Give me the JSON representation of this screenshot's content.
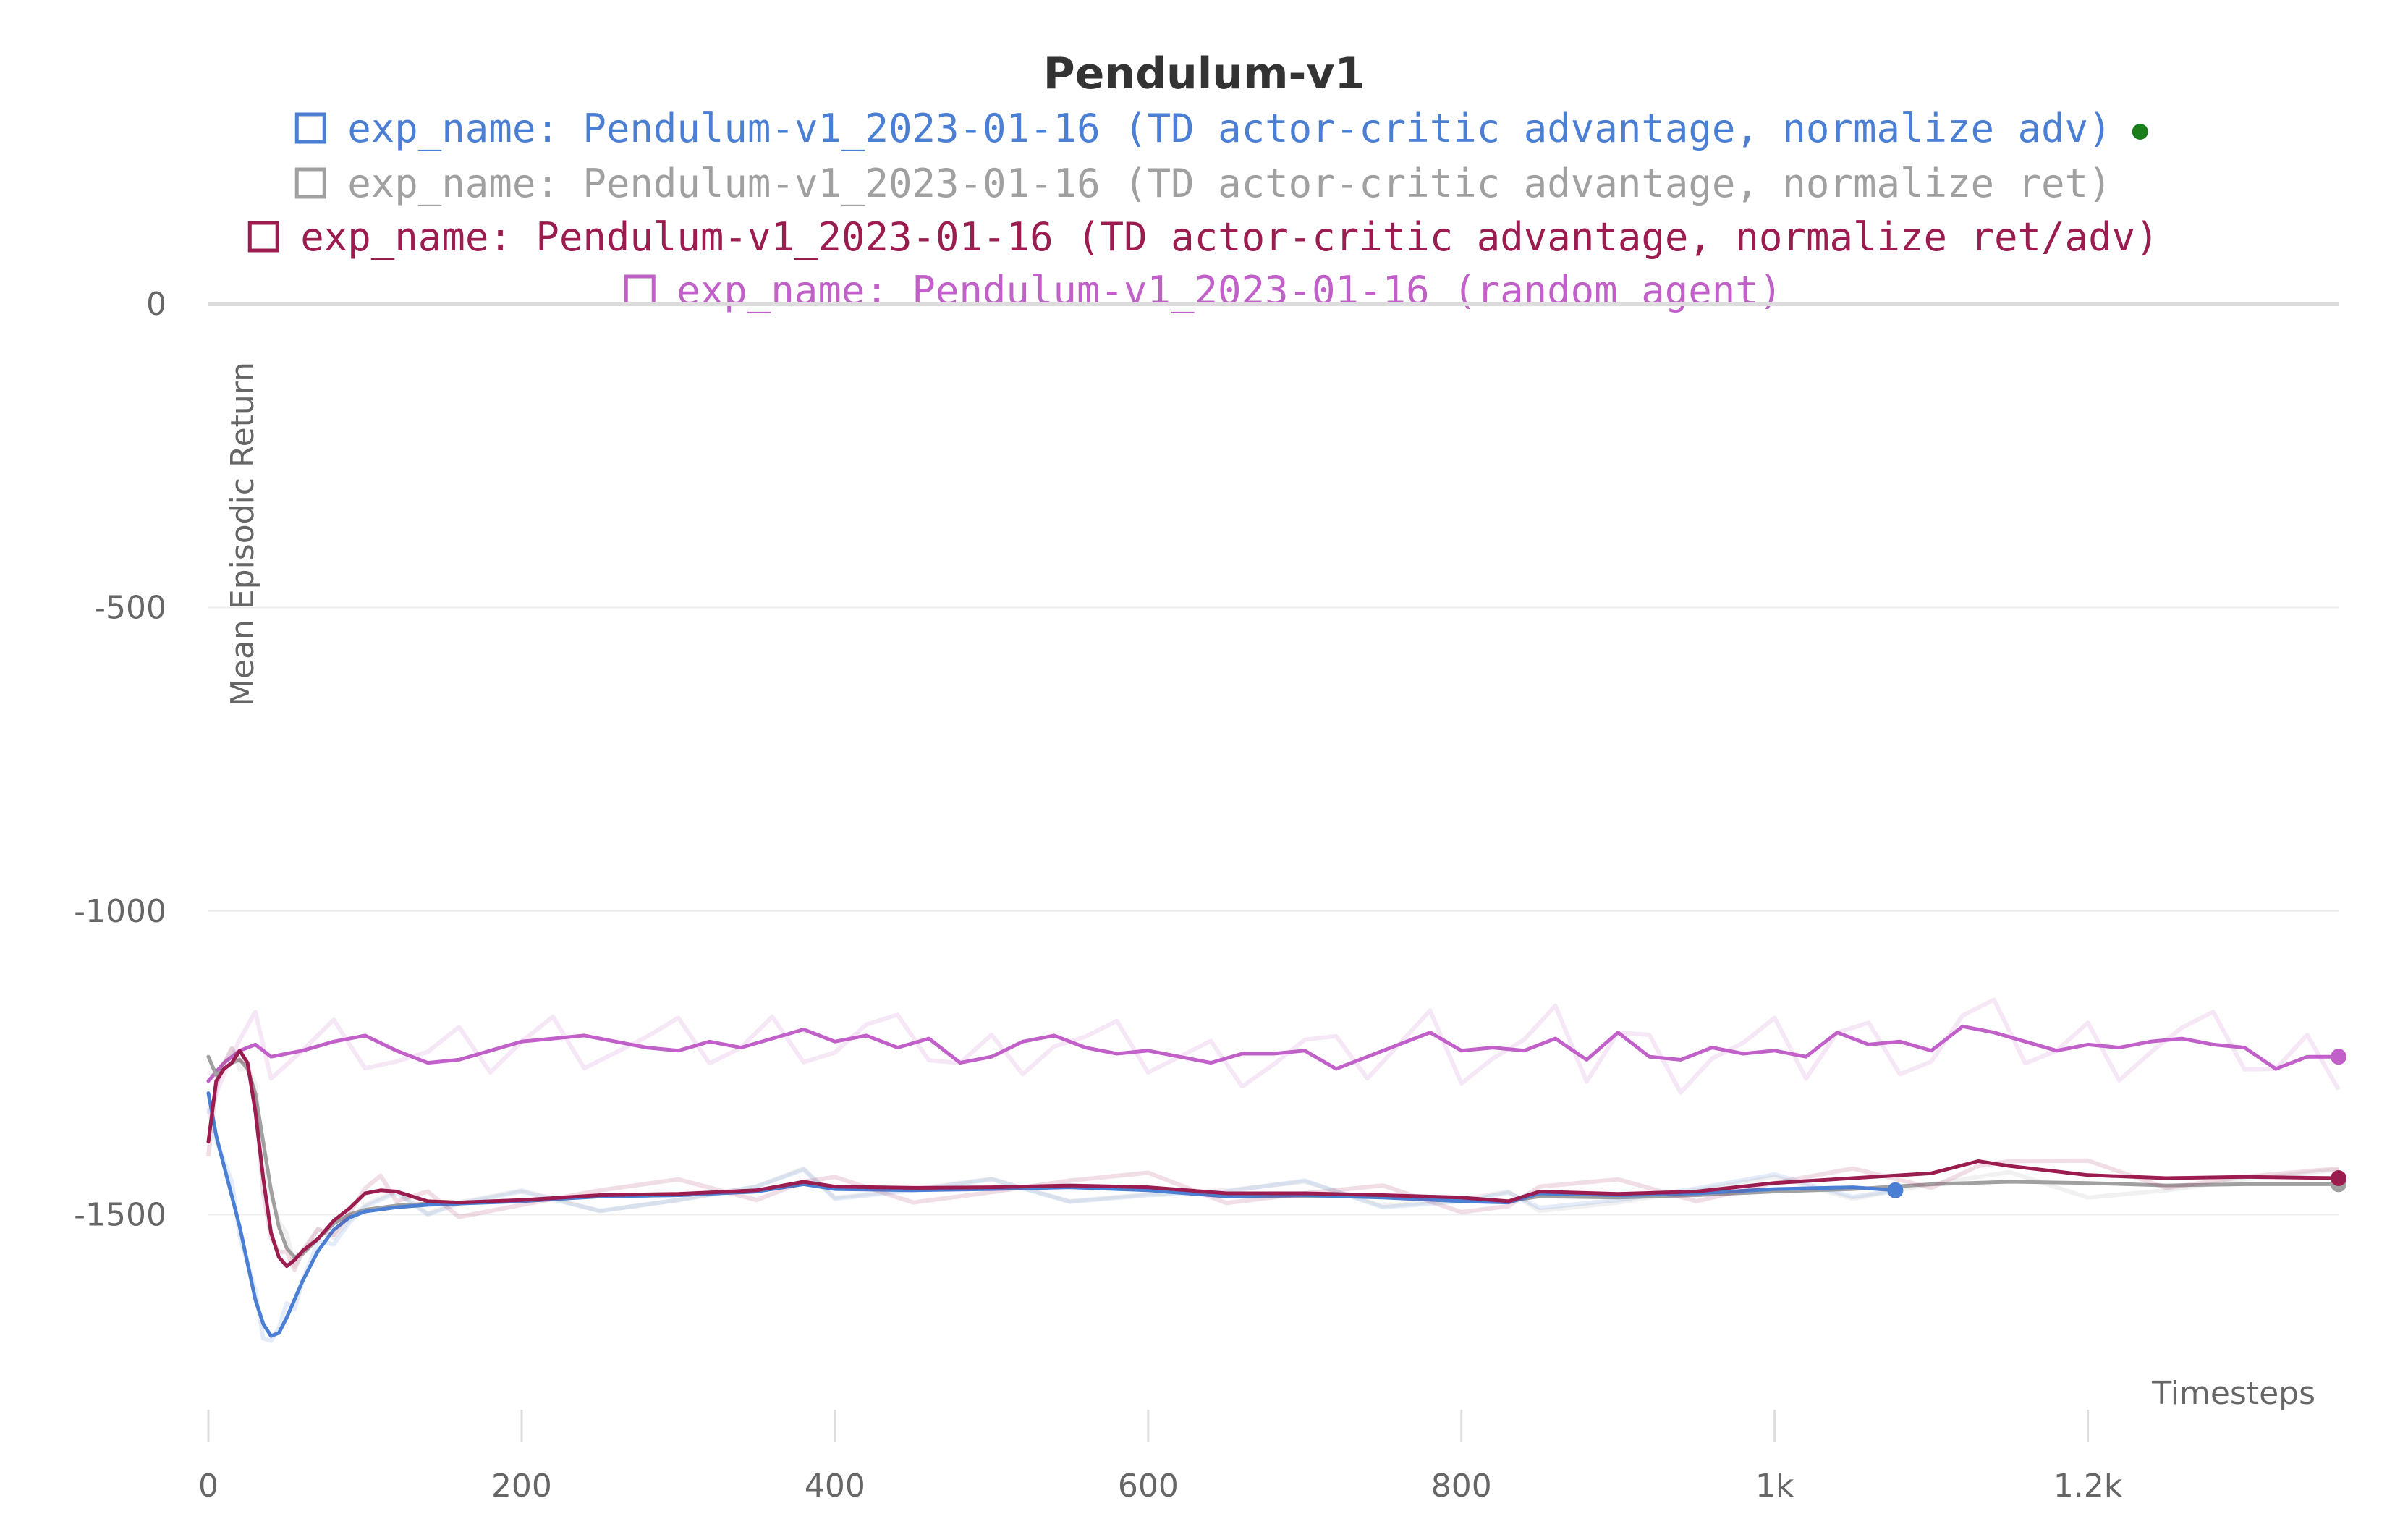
{
  "chart_data": {
    "type": "line",
    "title": "Pendulum-v1",
    "xlabel": "Timesteps",
    "ylabel": "Mean Episodic Return",
    "xlim": [
      0,
      1360
    ],
    "ylim": [
      -1800,
      0
    ],
    "x_ticks": [
      0,
      200,
      400,
      600,
      800,
      1000,
      1200
    ],
    "x_tick_labels": [
      "0",
      "200",
      "400",
      "600",
      "800",
      "1k",
      "1.2k"
    ],
    "y_ticks": [
      0,
      -500,
      -1000,
      -1500
    ],
    "y_tick_labels": [
      "0",
      "-500",
      "-1000",
      "-1500"
    ],
    "grid": true,
    "legend_position": "top-center",
    "legend_status_dot_color": "#1a7f1a",
    "series": [
      {
        "name": "exp_name: Pendulum-v1_2023-01-16 (TD actor-critic advantage, normalize adv)",
        "color": "#4a7fd4",
        "x": [
          0,
          5,
          10,
          15,
          20,
          25,
          30,
          35,
          40,
          45,
          50,
          55,
          60,
          70,
          80,
          90,
          100,
          120,
          140,
          160,
          200,
          250,
          300,
          350,
          380,
          400,
          450,
          500,
          550,
          600,
          650,
          700,
          750,
          800,
          830,
          850,
          900,
          950,
          1000,
          1050,
          1077
        ],
        "y": [
          -1300,
          -1370,
          -1420,
          -1470,
          -1520,
          -1580,
          -1640,
          -1680,
          -1700,
          -1695,
          -1670,
          -1640,
          -1610,
          -1560,
          -1525,
          -1505,
          -1495,
          -1488,
          -1484,
          -1482,
          -1478,
          -1470,
          -1468,
          -1462,
          -1450,
          -1458,
          -1460,
          -1458,
          -1455,
          -1460,
          -1470,
          -1468,
          -1472,
          -1478,
          -1480,
          -1465,
          -1468,
          -1465,
          -1458,
          -1455,
          -1460
        ]
      },
      {
        "name": "exp_name: Pendulum-v1_2023-01-16 (TD actor-critic advantage, normalize ret)",
        "color": "#a0a0a0",
        "x": [
          0,
          5,
          10,
          15,
          20,
          25,
          30,
          35,
          40,
          45,
          50,
          55,
          60,
          70,
          80,
          90,
          100,
          120,
          140,
          160,
          200,
          250,
          300,
          350,
          380,
          400,
          450,
          500,
          550,
          600,
          650,
          700,
          750,
          800,
          830,
          850,
          900,
          950,
          1000,
          1050,
          1100,
          1150,
          1200,
          1250,
          1300,
          1360
        ],
        "y": [
          -1240,
          -1270,
          -1260,
          -1250,
          -1245,
          -1260,
          -1300,
          -1380,
          -1460,
          -1520,
          -1555,
          -1570,
          -1565,
          -1540,
          -1515,
          -1500,
          -1492,
          -1485,
          -1482,
          -1480,
          -1476,
          -1470,
          -1468,
          -1462,
          -1448,
          -1456,
          -1458,
          -1457,
          -1454,
          -1458,
          -1468,
          -1470,
          -1470,
          -1475,
          -1478,
          -1470,
          -1472,
          -1468,
          -1462,
          -1458,
          -1450,
          -1446,
          -1448,
          -1452,
          -1450,
          -1450
        ]
      },
      {
        "name": "exp_name: Pendulum-v1_2023-01-16 (TD actor-critic advantage, normalize ret/adv)",
        "color": "#9b1c4f",
        "x": [
          0,
          5,
          10,
          15,
          20,
          25,
          30,
          35,
          40,
          45,
          50,
          55,
          60,
          70,
          80,
          90,
          100,
          110,
          120,
          130,
          140,
          160,
          200,
          250,
          300,
          350,
          380,
          400,
          450,
          500,
          550,
          600,
          650,
          700,
          750,
          800,
          830,
          850,
          900,
          950,
          1000,
          1050,
          1100,
          1130,
          1150,
          1200,
          1250,
          1300,
          1360
        ],
        "y": [
          -1380,
          -1280,
          -1260,
          -1250,
          -1230,
          -1250,
          -1330,
          -1440,
          -1530,
          -1570,
          -1585,
          -1575,
          -1560,
          -1540,
          -1510,
          -1490,
          -1465,
          -1460,
          -1462,
          -1470,
          -1478,
          -1480,
          -1476,
          -1468,
          -1466,
          -1460,
          -1446,
          -1454,
          -1456,
          -1455,
          -1452,
          -1455,
          -1465,
          -1465,
          -1468,
          -1472,
          -1478,
          -1462,
          -1466,
          -1462,
          -1448,
          -1440,
          -1432,
          -1412,
          -1420,
          -1435,
          -1440,
          -1438,
          -1440
        ]
      },
      {
        "name": "exp_name: Pendulum-v1_2023-01-16 (random agent)",
        "color": "#c060c8",
        "x": [
          0,
          10,
          20,
          30,
          40,
          60,
          80,
          100,
          120,
          140,
          160,
          180,
          200,
          220,
          240,
          260,
          280,
          300,
          320,
          340,
          360,
          380,
          400,
          420,
          440,
          460,
          480,
          500,
          520,
          540,
          560,
          580,
          600,
          620,
          640,
          660,
          680,
          700,
          720,
          740,
          760,
          780,
          800,
          820,
          840,
          860,
          880,
          900,
          920,
          940,
          960,
          980,
          1000,
          1020,
          1040,
          1060,
          1080,
          1100,
          1120,
          1140,
          1160,
          1180,
          1200,
          1220,
          1240,
          1260,
          1280,
          1300,
          1320,
          1340,
          1360
        ],
        "y": [
          -1280,
          -1250,
          -1230,
          -1220,
          -1240,
          -1230,
          -1215,
          -1205,
          -1230,
          -1250,
          -1245,
          -1230,
          -1215,
          -1210,
          -1205,
          -1215,
          -1225,
          -1230,
          -1215,
          -1225,
          -1210,
          -1195,
          -1215,
          -1205,
          -1225,
          -1210,
          -1250,
          -1240,
          -1215,
          -1205,
          -1225,
          -1235,
          -1230,
          -1240,
          -1250,
          -1235,
          -1235,
          -1230,
          -1260,
          -1240,
          -1220,
          -1200,
          -1230,
          -1225,
          -1230,
          -1210,
          -1245,
          -1200,
          -1240,
          -1245,
          -1225,
          -1235,
          -1230,
          -1240,
          -1200,
          -1220,
          -1215,
          -1230,
          -1190,
          -1200,
          -1215,
          -1230,
          -1220,
          -1225,
          -1215,
          -1210,
          -1220,
          -1225,
          -1260,
          -1240,
          -1240
        ]
      }
    ]
  }
}
